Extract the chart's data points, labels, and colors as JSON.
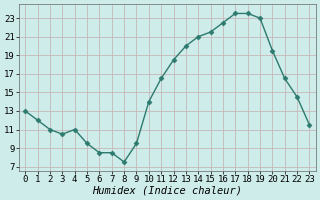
{
  "x": [
    0,
    1,
    2,
    3,
    4,
    5,
    6,
    7,
    8,
    9,
    10,
    11,
    12,
    13,
    14,
    15,
    16,
    17,
    18,
    19,
    20,
    21,
    22,
    23
  ],
  "y": [
    13,
    12,
    11,
    10.5,
    11,
    9.5,
    8.5,
    8.5,
    7.5,
    9.5,
    14,
    16.5,
    18.5,
    20,
    21,
    21.5,
    22.5,
    23.5,
    23.5,
    23,
    19.5,
    16.5,
    14.5,
    11.5
  ],
  "line_color": "#2d7a6e",
  "marker": "D",
  "marker_size": 2.5,
  "background_color": "#ceecea",
  "grid_color": "#c8b8b8",
  "xlabel": "Humidex (Indice chaleur)",
  "xlabel_fontsize": 7.5,
  "tick_fontsize": 6.5,
  "xlim": [
    -0.5,
    23.5
  ],
  "ylim": [
    6.5,
    24.5
  ],
  "yticks": [
    7,
    9,
    11,
    13,
    15,
    17,
    19,
    21,
    23
  ],
  "xticks": [
    0,
    1,
    2,
    3,
    4,
    5,
    6,
    7,
    8,
    9,
    10,
    11,
    12,
    13,
    14,
    15,
    16,
    17,
    18,
    19,
    20,
    21,
    22,
    23
  ]
}
